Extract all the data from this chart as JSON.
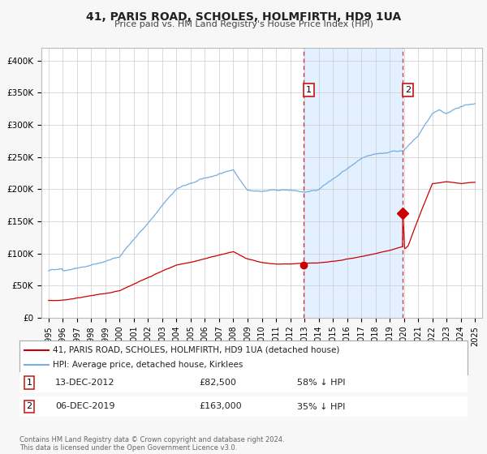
{
  "title": "41, PARIS ROAD, SCHOLES, HOLMFIRTH, HD9 1UA",
  "subtitle": "Price paid vs. HM Land Registry's House Price Index (HPI)",
  "background_color": "#f7f7f7",
  "plot_bg_color": "#ffffff",
  "red_line_color": "#cc0000",
  "blue_line_color": "#7aade0",
  "highlight_bg_color": "#ddeeff",
  "dashed_line_color": "#cc3333",
  "sale1_date_x": 2012.95,
  "sale1_price": 82500,
  "sale1_label": "1",
  "sale2_date_x": 2019.92,
  "sale2_price": 163000,
  "sale2_label": "2",
  "ylim": [
    0,
    420000
  ],
  "xlim_start": 1994.5,
  "xlim_end": 2025.5,
  "yticks": [
    0,
    50000,
    100000,
    150000,
    200000,
    250000,
    300000,
    350000,
    400000
  ],
  "ytick_labels": [
    "£0",
    "£50K",
    "£100K",
    "£150K",
    "£200K",
    "£250K",
    "£300K",
    "£350K",
    "£400K"
  ],
  "xticks": [
    1995,
    1996,
    1997,
    1998,
    1999,
    2000,
    2001,
    2002,
    2003,
    2004,
    2005,
    2006,
    2007,
    2008,
    2009,
    2010,
    2011,
    2012,
    2013,
    2014,
    2015,
    2016,
    2017,
    2018,
    2019,
    2020,
    2021,
    2022,
    2023,
    2024,
    2025
  ],
  "legend1_label": "41, PARIS ROAD, SCHOLES, HOLMFIRTH, HD9 1UA (detached house)",
  "legend2_label": "HPI: Average price, detached house, Kirklees",
  "sale1_info": "13-DEC-2012",
  "sale1_price_str": "£82,500",
  "sale1_pct": "58% ↓ HPI",
  "sale2_info": "06-DEC-2019",
  "sale2_price_str": "£163,000",
  "sale2_pct": "35% ↓ HPI",
  "footer": "Contains HM Land Registry data © Crown copyright and database right 2024.\nThis data is licensed under the Open Government Licence v3.0."
}
